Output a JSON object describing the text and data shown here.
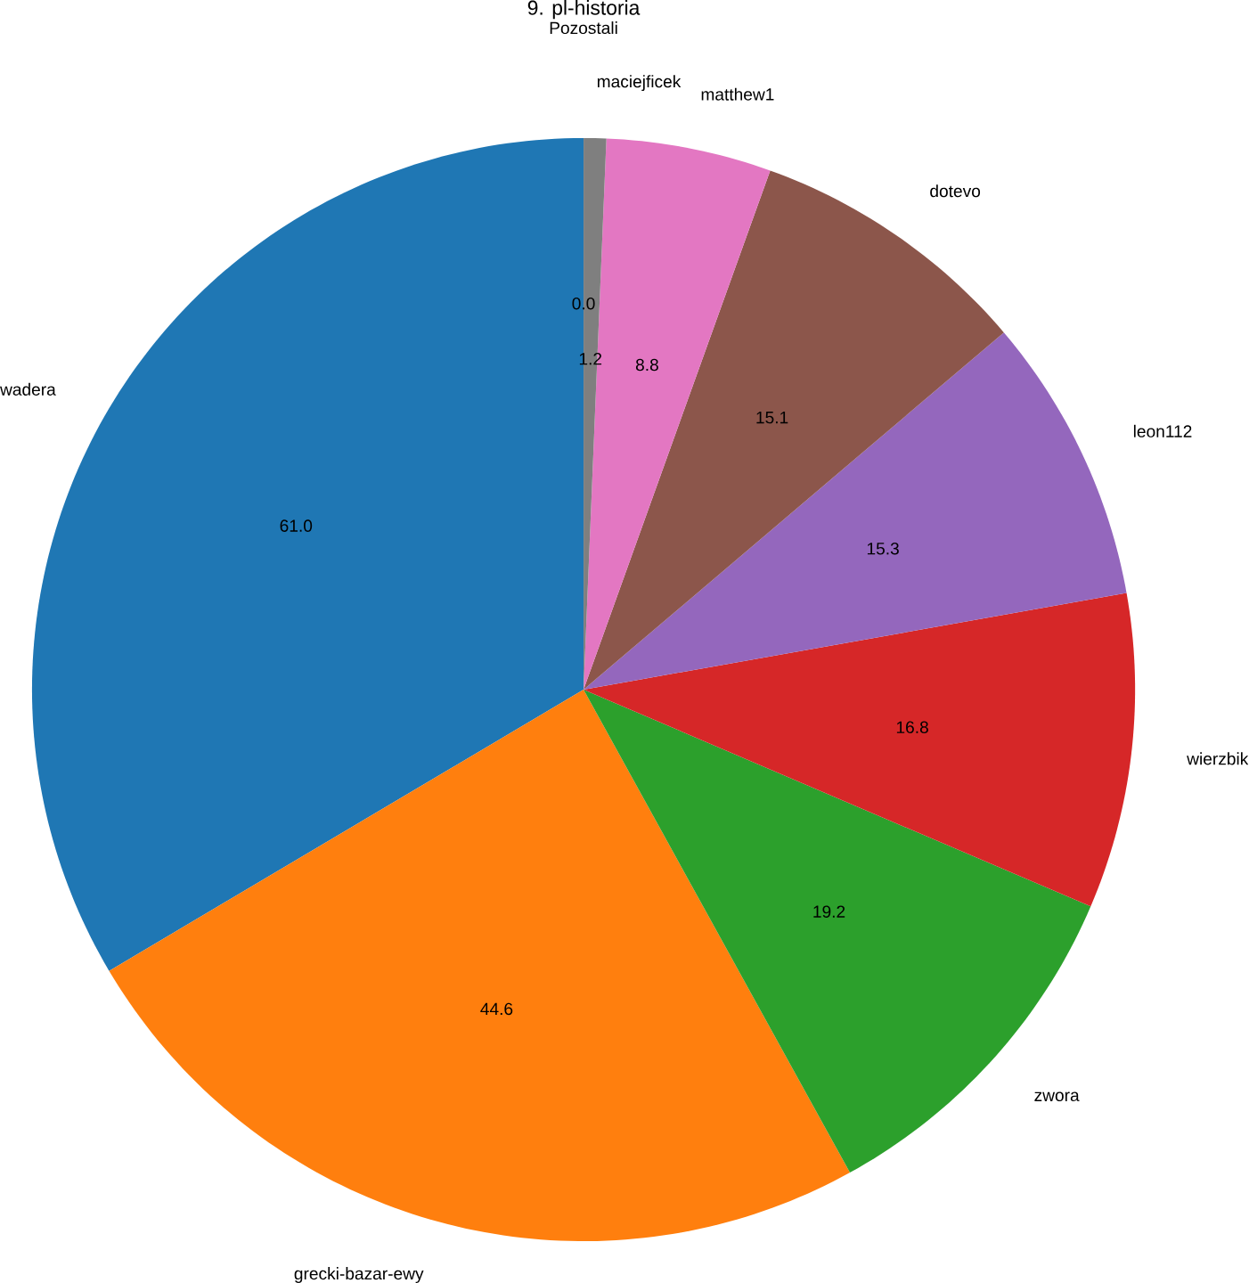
{
  "chart_data": {
    "type": "pie",
    "title": "9. pl-historia",
    "categories": [
      "wadera",
      "grecki-bazar-ewy",
      "zwora",
      "wierzbik",
      "leon112",
      "dotevo",
      "matthew1",
      "maciejficek",
      "Pozostali"
    ],
    "values": [
      61.0,
      44.6,
      19.2,
      16.8,
      15.3,
      15.1,
      8.8,
      1.2,
      0.0
    ],
    "value_labels": [
      "61.0",
      "44.6",
      "19.2",
      "16.8",
      "15.3",
      "15.1",
      "8.8",
      "1.2",
      "0.0"
    ],
    "colors": [
      "#1f77b4",
      "#ff7f0e",
      "#2ca02c",
      "#d62728",
      "#9467bd",
      "#8c564b",
      "#e377c2",
      "#7f7f7f",
      "#bcbd22"
    ]
  }
}
